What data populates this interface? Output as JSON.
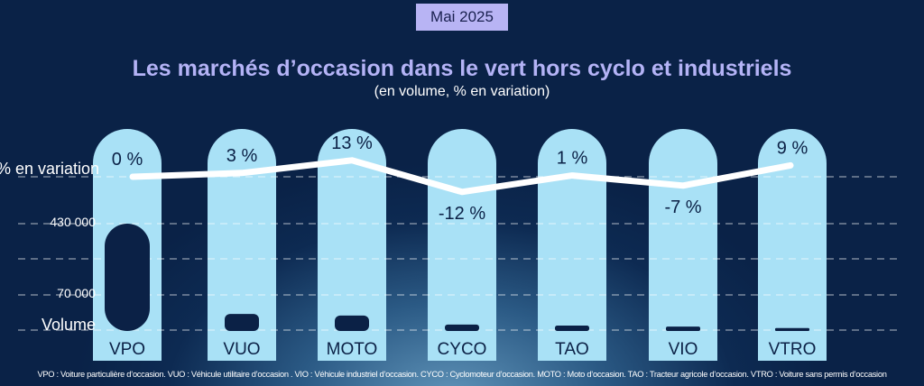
{
  "badge": "Mai 2025",
  "title": "Les marchés d’occasion dans le vert hors cyclo et industriels",
  "subtitle": "(en volume, % en variation)",
  "axis_labels": {
    "variation": "% en variation",
    "v430": "430 000",
    "v70": "70 000",
    "volume": "Volume"
  },
  "footnote": "VPO : Voiture particulière d’occasion. VUO : Véhicule utilitaire d’occasion . VIO : Véhicule industriel d’occasion. CYCO : Cyclomoteur d’occasion. MOTO : Moto d’occasion. TAO : Tracteur agricole d’occasion. VTRO : Voiture sans permis d’occasion",
  "colors": {
    "column": "#a9e1f6",
    "bar": "#0b2146",
    "line": "#ffffff",
    "title": "#b4b3f6"
  },
  "chart_data": {
    "type": "bar",
    "title": "Les marchés d’occasion dans le vert hors cyclo et industriels",
    "subtitle": "(en volume, % en variation)",
    "categories": [
      "VPO",
      "VUO",
      "MOTO",
      "CYCO",
      "TAO",
      "VIO",
      "VTRO"
    ],
    "series": [
      {
        "name": "Volume",
        "type": "bar",
        "values": [
          430000,
          32000,
          29000,
          11000,
          9000,
          7000,
          4000
        ]
      },
      {
        "name": "% en variation",
        "type": "line",
        "values": [
          0,
          3,
          13,
          -12,
          1,
          -7,
          9
        ],
        "labels": [
          "0 %",
          "3 %",
          "13 %",
          "-12 %",
          "1 %",
          "-7 %",
          "9 %"
        ]
      }
    ],
    "yticks": [
      "70 000",
      "430 000"
    ],
    "grid": true
  }
}
